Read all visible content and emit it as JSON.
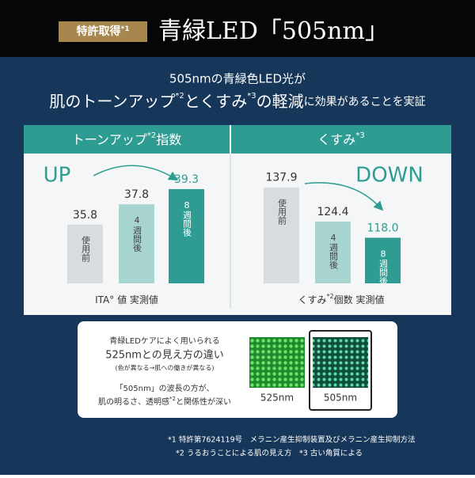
{
  "header": {
    "badge": "特許取得",
    "badge_note": "*1",
    "title": "青緑LED「505nm」"
  },
  "intro": {
    "line1": "505nmの青緑色LED光が",
    "line2": [
      "肌のトーンアップ",
      "*2",
      "とくすみ",
      "*3",
      "の軽減",
      "に効果があることを実証"
    ]
  },
  "chart_data": [
    {
      "type": "bar",
      "title": "トーンアップ",
      "title_note": "*2",
      "title_suffix": "指数",
      "annotation": "UP",
      "categories": [
        "使用前",
        "4週間後",
        "8週間後"
      ],
      "values": [
        35.8,
        37.8,
        39.3
      ],
      "colors": [
        "#d8dcdf",
        "#a8d4cf",
        "#2f9c93"
      ],
      "label_colors": [
        "#333333",
        "#333333",
        "#2f9c93"
      ],
      "ylim": [
        30,
        40
      ],
      "xlabel": "ITA° 値 実測値"
    },
    {
      "type": "bar",
      "title": "くすみ",
      "title_note": "*3",
      "annotation": "DOWN",
      "categories": [
        "使用前",
        "4週間後",
        "8週間後"
      ],
      "values": [
        137.9,
        124.4,
        118.0
      ],
      "value_labels": [
        "137.9",
        "124.4",
        "118.0"
      ],
      "colors": [
        "#d8dcdf",
        "#a8d4cf",
        "#2f9c93"
      ],
      "label_colors": [
        "#333333",
        "#333333",
        "#2f9c93"
      ],
      "ylim": [
        100,
        140
      ],
      "xlabel": "くすみ",
      "xlabel_note": "*2",
      "xlabel_suffix": "個数 実測値"
    }
  ],
  "comparison": {
    "lines": [
      "青緑LEDケアによく用いられる",
      "525nmとの見え方の違い",
      "(色が異なる→肌への働きが異なる)",
      "「505nm」の波長の方が、"
    ],
    "last": [
      "肌の明るさ、透明感",
      "*2",
      "と関係性が深い"
    ],
    "label_a": "525nm",
    "label_b": "505nm"
  },
  "footnotes": [
    "*1 特許第7624119号　メラニン産生抑制装置及びメラニン産生抑制方法",
    "*2 うるおうことによる肌の見え方　*3 古い角質による"
  ]
}
